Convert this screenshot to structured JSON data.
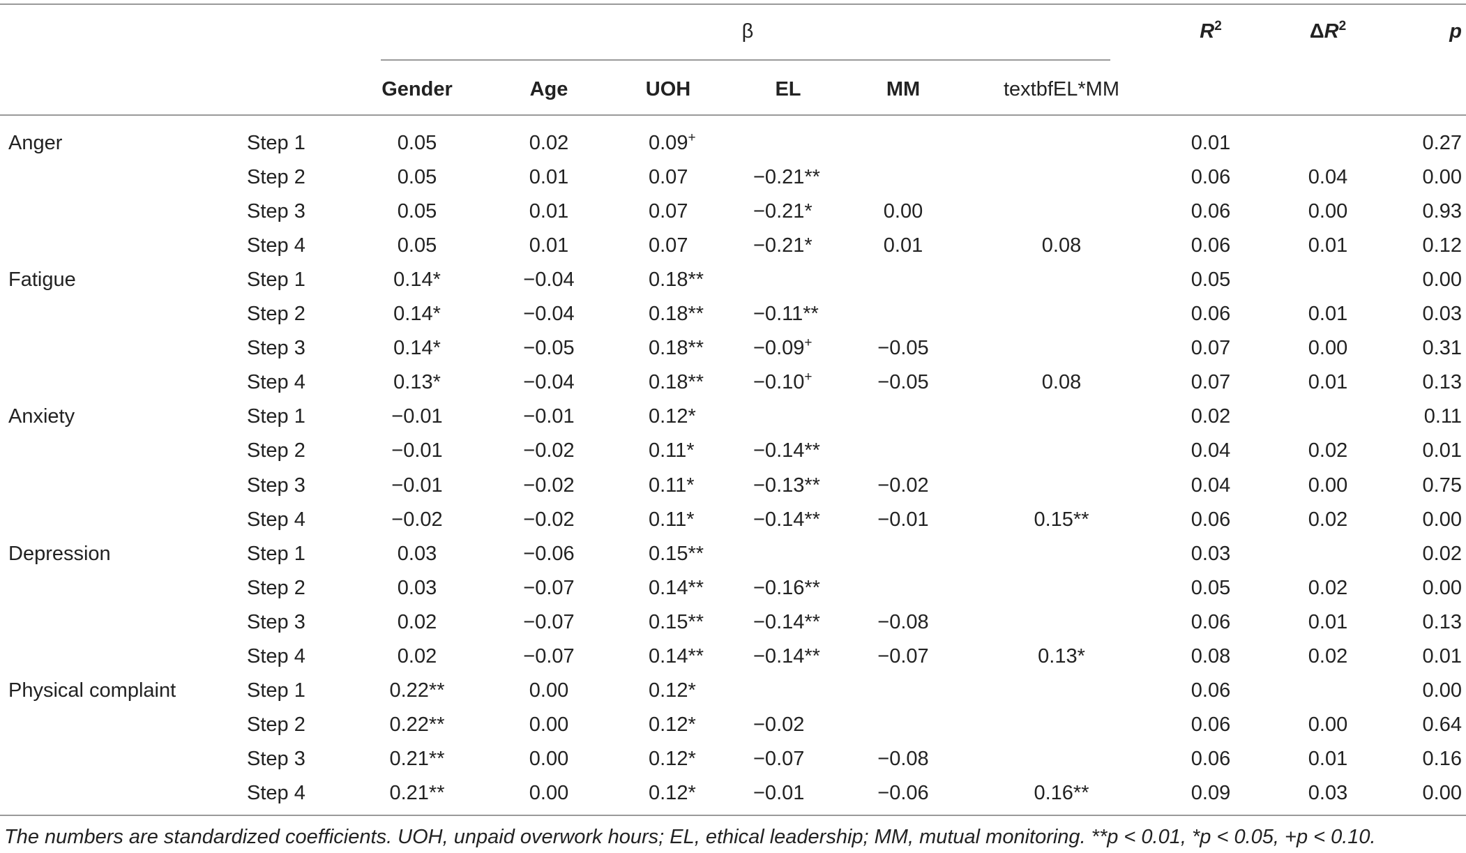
{
  "header": {
    "beta": "β",
    "columns": [
      "Gender",
      "Age",
      "UOH",
      "EL",
      "MM",
      "textbfEL*MM"
    ],
    "r2_label": "R",
    "r2_sup": "2",
    "dr2_delta": "Δ",
    "dr2_label": "R",
    "dr2_sup": "2",
    "p_label": "p"
  },
  "rows": [
    {
      "group": "Anger",
      "step": "Step 1",
      "gender": "0.05",
      "age": "0.02",
      "uoh": "0.09",
      "uoh_sup": "+",
      "el": "",
      "el_sup": "",
      "mm": "",
      "elmm": "",
      "r2": "0.01",
      "dr2": "",
      "p": "0.27"
    },
    {
      "group": "",
      "step": "Step 2",
      "gender": "0.05",
      "age": "0.01",
      "uoh": "0.07",
      "uoh_sup": "",
      "el": "−0.21**",
      "el_sup": "",
      "mm": "",
      "elmm": "",
      "r2": "0.06",
      "dr2": "0.04",
      "p": "0.00"
    },
    {
      "group": "",
      "step": "Step 3",
      "gender": "0.05",
      "age": "0.01",
      "uoh": "0.07",
      "uoh_sup": "",
      "el": "−0.21*",
      "el_sup": "",
      "mm": "0.00",
      "elmm": "",
      "r2": "0.06",
      "dr2": "0.00",
      "p": "0.93"
    },
    {
      "group": "",
      "step": "Step 4",
      "gender": "0.05",
      "age": "0.01",
      "uoh": "0.07",
      "uoh_sup": "",
      "el": "−0.21*",
      "el_sup": "",
      "mm": "0.01",
      "elmm": "0.08",
      "r2": "0.06",
      "dr2": "0.01",
      "p": "0.12"
    },
    {
      "group": "Fatigue",
      "step": "Step 1",
      "gender": "0.14*",
      "age": "−0.04",
      "uoh": "0.18**",
      "uoh_sup": "",
      "el": "",
      "el_sup": "",
      "mm": "",
      "elmm": "",
      "r2": "0.05",
      "dr2": "",
      "p": "0.00"
    },
    {
      "group": "",
      "step": "Step 2",
      "gender": "0.14*",
      "age": "−0.04",
      "uoh": "0.18**",
      "uoh_sup": "",
      "el": "−0.11**",
      "el_sup": "",
      "mm": "",
      "elmm": "",
      "r2": "0.06",
      "dr2": "0.01",
      "p": "0.03"
    },
    {
      "group": "",
      "step": "Step 3",
      "gender": "0.14*",
      "age": "−0.05",
      "uoh": "0.18**",
      "uoh_sup": "",
      "el": "−0.09",
      "el_sup": "+",
      "mm": "−0.05",
      "elmm": "",
      "r2": "0.07",
      "dr2": "0.00",
      "p": "0.31"
    },
    {
      "group": "",
      "step": "Step 4",
      "gender": "0.13*",
      "age": "−0.04",
      "uoh": "0.18**",
      "uoh_sup": "",
      "el": "−0.10",
      "el_sup": "+",
      "mm": "−0.05",
      "elmm": "0.08",
      "r2": "0.07",
      "dr2": "0.01",
      "p": "0.13"
    },
    {
      "group": "Anxiety",
      "step": "Step 1",
      "gender": "−0.01",
      "age": "−0.01",
      "uoh": "0.12*",
      "uoh_sup": "",
      "el": "",
      "el_sup": "",
      "mm": "",
      "elmm": "",
      "r2": "0.02",
      "dr2": "",
      "p": "0.11"
    },
    {
      "group": "",
      "step": "Step 2",
      "gender": "−0.01",
      "age": "−0.02",
      "uoh": "0.11*",
      "uoh_sup": "",
      "el": "−0.14**",
      "el_sup": "",
      "mm": "",
      "elmm": "",
      "r2": "0.04",
      "dr2": "0.02",
      "p": "0.01"
    },
    {
      "group": "",
      "step": "Step 3",
      "gender": "−0.01",
      "age": "−0.02",
      "uoh": "0.11*",
      "uoh_sup": "",
      "el": "−0.13**",
      "el_sup": "",
      "mm": "−0.02",
      "elmm": "",
      "r2": "0.04",
      "dr2": "0.00",
      "p": "0.75"
    },
    {
      "group": "",
      "step": "Step 4",
      "gender": "−0.02",
      "age": "−0.02",
      "uoh": "0.11*",
      "uoh_sup": "",
      "el": "−0.14**",
      "el_sup": "",
      "mm": "−0.01",
      "elmm": "0.15**",
      "r2": "0.06",
      "dr2": "0.02",
      "p": "0.00"
    },
    {
      "group": "Depression",
      "step": "Step 1",
      "gender": "0.03",
      "age": "−0.06",
      "uoh": "0.15**",
      "uoh_sup": "",
      "el": "",
      "el_sup": "",
      "mm": "",
      "elmm": "",
      "r2": "0.03",
      "dr2": "",
      "p": "0.02"
    },
    {
      "group": "",
      "step": "Step 2",
      "gender": "0.03",
      "age": "−0.07",
      "uoh": "0.14**",
      "uoh_sup": "",
      "el": "−0.16**",
      "el_sup": "",
      "mm": "",
      "elmm": "",
      "r2": "0.05",
      "dr2": "0.02",
      "p": "0.00"
    },
    {
      "group": "",
      "step": "Step 3",
      "gender": "0.02",
      "age": "−0.07",
      "uoh": "0.15**",
      "uoh_sup": "",
      "el": "−0.14**",
      "el_sup": "",
      "mm": "−0.08",
      "elmm": "",
      "r2": "0.06",
      "dr2": "0.01",
      "p": "0.13"
    },
    {
      "group": "",
      "step": "Step 4",
      "gender": "0.02",
      "age": "−0.07",
      "uoh": "0.14**",
      "uoh_sup": "",
      "el": "−0.14**",
      "el_sup": "",
      "mm": "−0.07",
      "elmm": "0.13*",
      "r2": "0.08",
      "dr2": "0.02",
      "p": "0.01"
    },
    {
      "group": "Physical complaint",
      "step": "Step 1",
      "gender": "0.22**",
      "age": "0.00",
      "uoh": "0.12*",
      "uoh_sup": "",
      "el": "",
      "el_sup": "",
      "mm": "",
      "elmm": "",
      "r2": "0.06",
      "dr2": "",
      "p": "0.00"
    },
    {
      "group": "",
      "step": "Step 2",
      "gender": "0.22**",
      "age": "0.00",
      "uoh": "0.12*",
      "uoh_sup": "",
      "el": "−0.02",
      "el_sup": "",
      "mm": "",
      "elmm": "",
      "r2": "0.06",
      "dr2": "0.00",
      "p": "0.64"
    },
    {
      "group": "",
      "step": "Step 3",
      "gender": "0.21**",
      "age": "0.00",
      "uoh": "0.12*",
      "uoh_sup": "",
      "el": "−0.07",
      "el_sup": "",
      "mm": "−0.08",
      "elmm": "",
      "r2": "0.06",
      "dr2": "0.01",
      "p": "0.16"
    },
    {
      "group": "",
      "step": "Step 4",
      "gender": "0.21**",
      "age": "0.00",
      "uoh": "0.12*",
      "uoh_sup": "",
      "el": "−0.01",
      "el_sup": "",
      "mm": "−0.06",
      "elmm": "0.16**",
      "r2": "0.09",
      "dr2": "0.03",
      "p": "0.00"
    }
  ],
  "caption": "The numbers are standardized coefficients. UOH, unpaid overwork hours; EL, ethical leadership; MM, mutual monitoring. **p < 0.01, *p < 0.05, +p < 0.10."
}
